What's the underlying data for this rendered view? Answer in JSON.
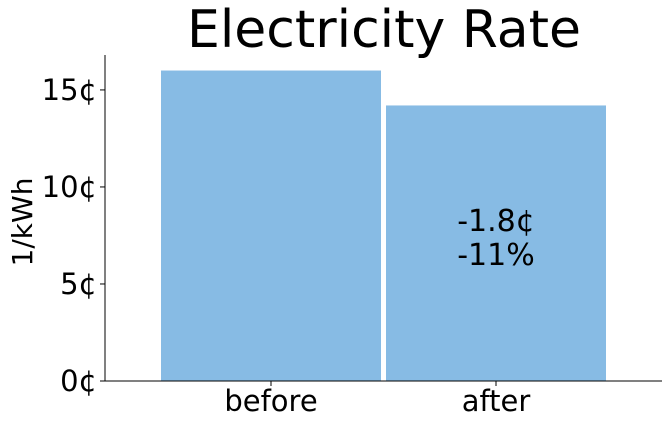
{
  "chart_data": {
    "type": "bar",
    "title": "Electricity Rate",
    "xlabel": "",
    "ylabel": "1/kWh",
    "categories": [
      "before",
      "after"
    ],
    "values": [
      16.0,
      14.2
    ],
    "ylim": [
      0,
      16.8
    ],
    "yticks": [
      0,
      5,
      10,
      15
    ],
    "ytick_labels": [
      "0¢",
      "5¢",
      "10¢",
      "15¢"
    ],
    "bar_color": "#87bbe4",
    "grid": false,
    "annotation": {
      "category": "after",
      "lines": [
        "-1.8¢",
        "-11%"
      ]
    }
  }
}
